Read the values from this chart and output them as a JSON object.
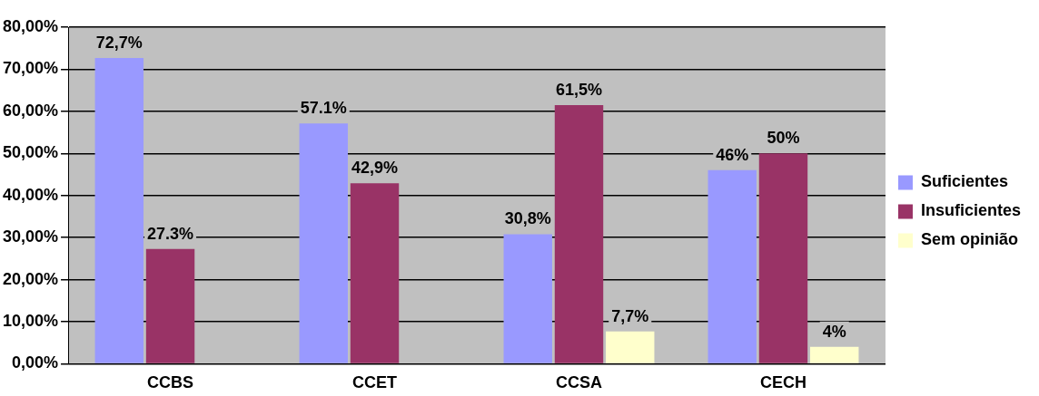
{
  "chart_data": {
    "type": "bar",
    "categories": [
      "CCBS",
      "CCET",
      "CCSA",
      "CECH"
    ],
    "series": [
      {
        "name": "Suficientes",
        "color": "#9999ff",
        "values": [
          72.7,
          57.1,
          30.8,
          46
        ],
        "value_labels": [
          "72,7%",
          "57.1%",
          "30,8%",
          "46%"
        ]
      },
      {
        "name": "Insuficientes",
        "color": "#993366",
        "values": [
          27.3,
          42.9,
          61.5,
          50
        ],
        "value_labels": [
          "27.3%",
          "42,9%",
          "61,5%",
          "50%"
        ]
      },
      {
        "name": "Sem opinião",
        "color": "#ffffcc",
        "values": [
          null,
          null,
          7.7,
          4
        ],
        "value_labels": [
          null,
          null,
          "7,7%",
          "4%"
        ]
      }
    ],
    "ylim": [
      0,
      80
    ],
    "yticks": [
      {
        "value": 0,
        "label": "0,00%"
      },
      {
        "value": 10,
        "label": "10,00%"
      },
      {
        "value": 20,
        "label": "20,00%"
      },
      {
        "value": 30,
        "label": "30,00%"
      },
      {
        "value": 40,
        "label": "40,00%"
      },
      {
        "value": 50,
        "label": "50,00%"
      },
      {
        "value": 60,
        "label": "60,00%"
      },
      {
        "value": 70,
        "label": "70,00%"
      },
      {
        "value": 80,
        "label": "80,00%"
      }
    ],
    "grid": "y",
    "legend": "right"
  }
}
